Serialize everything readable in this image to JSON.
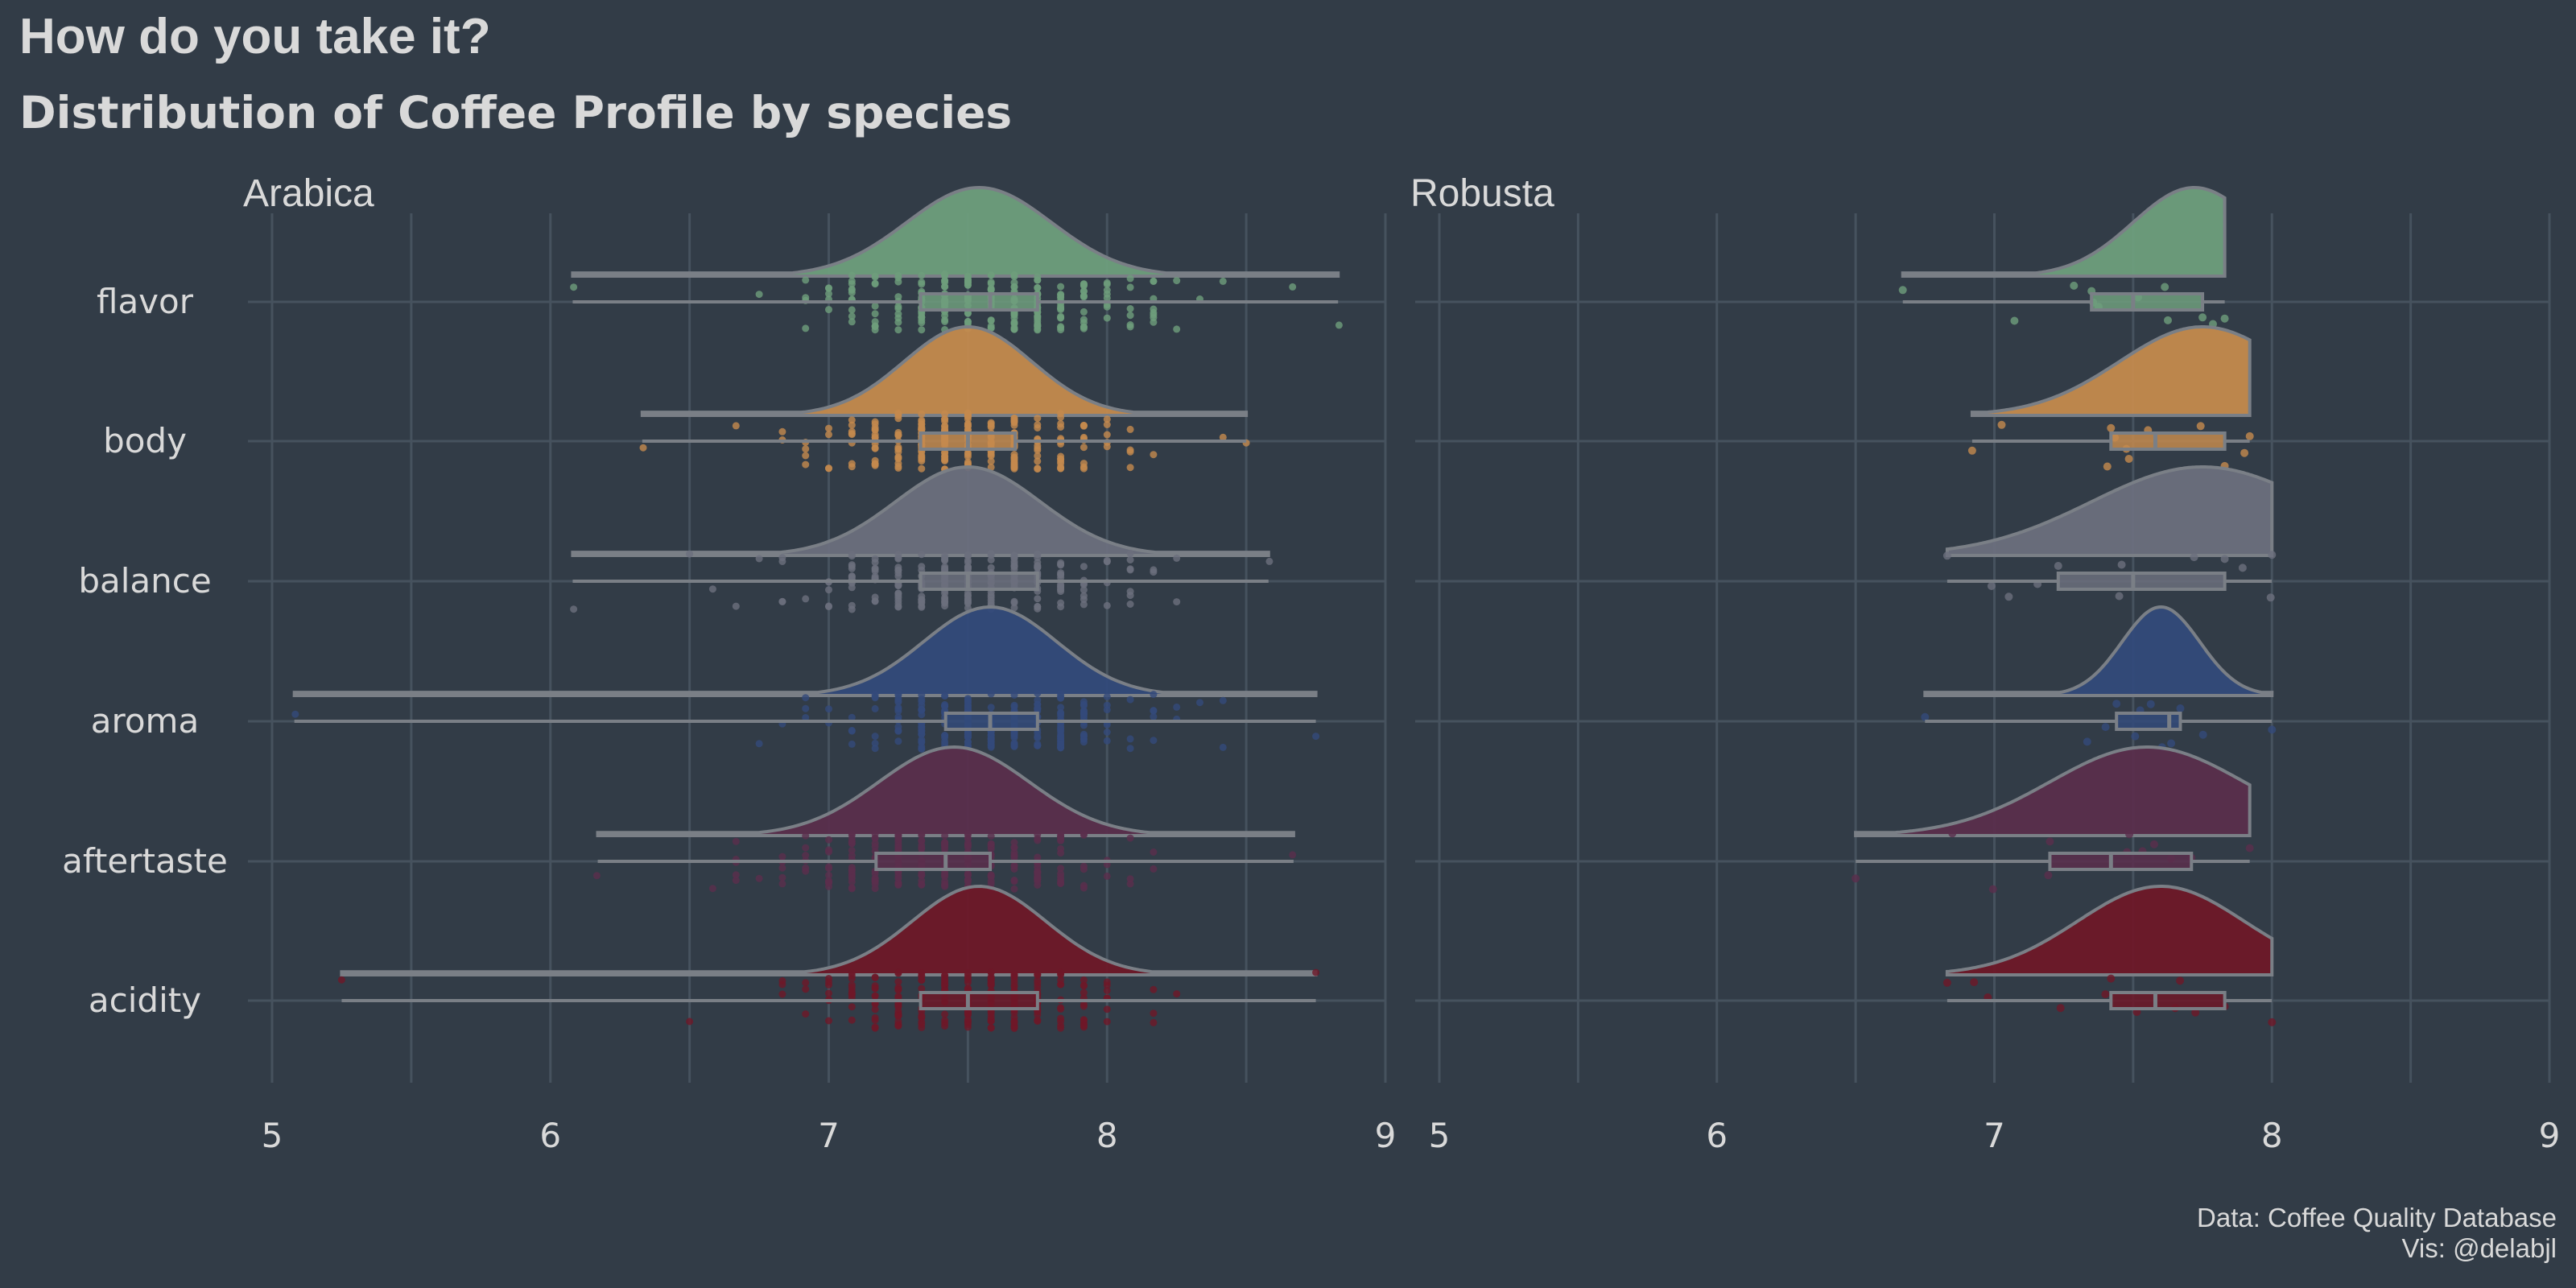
{
  "title": "How do you take it?",
  "subtitle": "Distribution of Coffee Profile by species",
  "caption": {
    "line1": "Data: Coffee Quality Database",
    "line2": "Vis: @delabjl"
  },
  "colors": {
    "background": "#323C47",
    "grid": "#46525E",
    "outline": "#7A7F86",
    "text": "#D9D9D9"
  },
  "chart_data": {
    "type": "raincloud",
    "xlim": [
      5,
      9
    ],
    "x_ticks": [
      5,
      6,
      7,
      8,
      9
    ],
    "categories": [
      "flavor",
      "body",
      "balance",
      "aroma",
      "aftertaste",
      "acidity"
    ],
    "category_colors": {
      "flavor": "#6E9E7C",
      "body": "#C48A4D",
      "balance": "#6B6F7D",
      "aroma": "#334A7A",
      "aftertaste": "#5A2E4C",
      "acidity": "#6E1828"
    },
    "panels": [
      {
        "name": "Arabica",
        "series": {
          "flavor": {
            "min": 6.08,
            "q1": 7.33,
            "median": 7.58,
            "q3": 7.75,
            "max": 8.83,
            "peak": 7.54,
            "sd": 0.26
          },
          "body": {
            "min": 6.33,
            "q1": 7.33,
            "median": 7.5,
            "q3": 7.67,
            "max": 8.5,
            "peak": 7.5,
            "sd": 0.23
          },
          "balance": {
            "min": 6.08,
            "q1": 7.33,
            "median": 7.5,
            "q3": 7.75,
            "max": 8.58,
            "peak": 7.5,
            "sd": 0.26
          },
          "aroma": {
            "min": 5.08,
            "q1": 7.42,
            "median": 7.58,
            "q3": 7.75,
            "max": 8.75,
            "peak": 7.58,
            "sd": 0.24
          },
          "aftertaste": {
            "min": 6.17,
            "q1": 7.17,
            "median": 7.42,
            "q3": 7.58,
            "max": 8.67,
            "peak": 7.45,
            "sd": 0.27
          },
          "acidity": {
            "min": 5.25,
            "q1": 7.33,
            "median": 7.5,
            "q3": 7.75,
            "max": 8.75,
            "peak": 7.54,
            "sd": 0.24
          }
        }
      },
      {
        "name": "Robusta",
        "series": {
          "flavor": {
            "min": 6.67,
            "q1": 7.35,
            "median": 7.5,
            "q3": 7.75,
            "max": 7.83,
            "peak": 7.72,
            "sd": 0.22
          },
          "body": {
            "min": 6.92,
            "q1": 7.42,
            "median": 7.58,
            "q3": 7.83,
            "max": 7.92,
            "peak": 7.75,
            "sd": 0.3
          },
          "balance": {
            "min": 6.83,
            "q1": 7.23,
            "median": 7.5,
            "q3": 7.83,
            "max": 8.0,
            "peak": 7.75,
            "sd": 0.4
          },
          "aroma": {
            "min": 6.75,
            "q1": 7.44,
            "median": 7.63,
            "q3": 7.67,
            "max": 8.0,
            "peak": 7.6,
            "sd": 0.14
          },
          "aftertaste": {
            "min": 6.5,
            "q1": 7.2,
            "median": 7.42,
            "q3": 7.71,
            "max": 7.92,
            "peak": 7.55,
            "sd": 0.35
          },
          "acidity": {
            "min": 6.83,
            "q1": 7.42,
            "median": 7.58,
            "q3": 7.83,
            "max": 8.0,
            "peak": 7.6,
            "sd": 0.3
          }
        }
      }
    ]
  }
}
